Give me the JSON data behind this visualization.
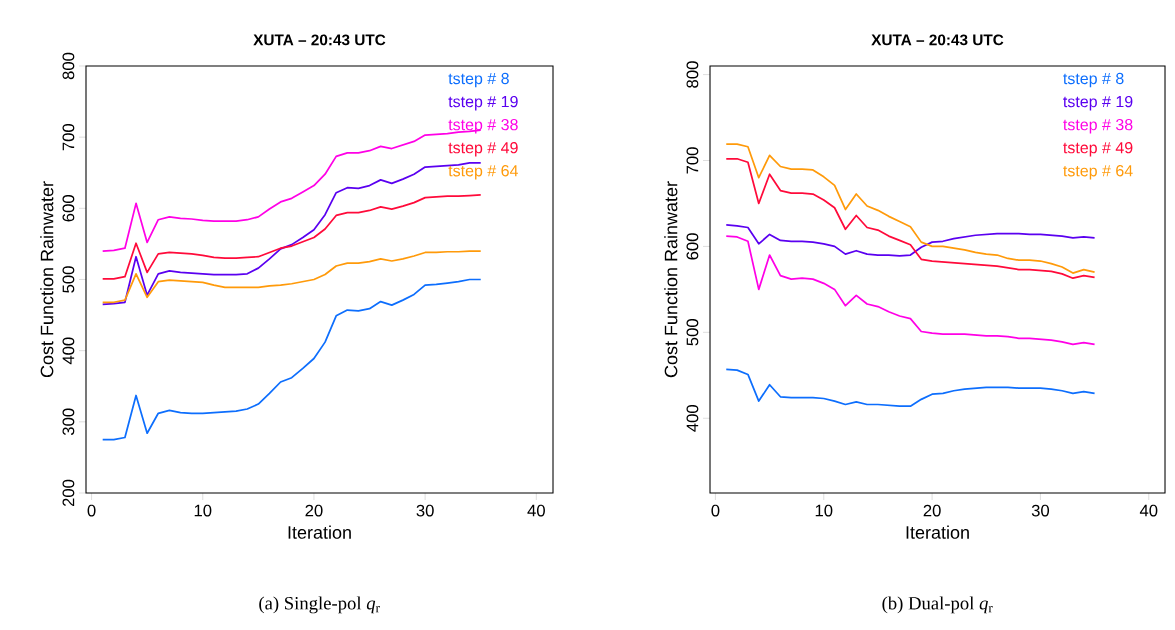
{
  "chart_data": [
    {
      "type": "line",
      "title": "XUTA – 20:43 UTC",
      "xlabel": "Iteration",
      "ylabel": "Cost Function Rainwater",
      "annotations": [
        "(a) Single-pol *q*$_{r}$"
      ],
      "x": [
        1,
        2,
        3,
        4,
        5,
        6,
        7,
        8,
        9,
        10,
        11,
        12,
        13,
        14,
        15,
        16,
        17,
        18,
        19,
        20,
        21,
        22,
        23,
        24,
        25,
        26,
        27,
        28,
        29,
        30,
        31,
        32,
        33,
        34,
        35
      ],
      "xlim": [
        -0.5,
        41.5
      ],
      "ylim": [
        200,
        800
      ],
      "xticks": [
        0,
        10,
        20,
        30,
        40
      ],
      "yticks": [
        200,
        300,
        400,
        500,
        600,
        700,
        800
      ],
      "legend": "top right",
      "marker": "none",
      "series": [
        {
          "name": "tstep # 8",
          "color": "#0d6efd",
          "values": [
            275,
            275,
            278,
            337,
            284,
            312,
            316,
            313,
            312,
            312,
            313,
            314,
            315,
            318,
            325,
            340,
            356,
            362,
            375,
            389,
            412,
            449,
            457,
            456,
            459,
            469,
            464,
            471,
            479,
            492,
            493,
            495,
            497,
            500,
            500
          ]
        },
        {
          "name": "tstep # 19",
          "color": "#5a00f0",
          "values": [
            465,
            466,
            468,
            532,
            478,
            508,
            512,
            510,
            509,
            508,
            507,
            507,
            507,
            508,
            516,
            529,
            543,
            549,
            559,
            570,
            591,
            622,
            629,
            628,
            632,
            640,
            635,
            641,
            648,
            658,
            659,
            660,
            661,
            664,
            664
          ]
        },
        {
          "name": "tstep # 38",
          "color": "#ff00e6",
          "values": [
            540,
            541,
            544,
            607,
            552,
            584,
            588,
            586,
            585,
            583,
            582,
            582,
            582,
            584,
            588,
            599,
            609,
            614,
            623,
            632,
            648,
            673,
            678,
            678,
            681,
            687,
            684,
            689,
            694,
            703,
            704,
            705,
            707,
            708,
            710
          ]
        },
        {
          "name": "tstep # 49",
          "color": "#ff0a3a",
          "values": [
            501,
            501,
            504,
            551,
            510,
            536,
            538,
            537,
            536,
            534,
            531,
            530,
            530,
            531,
            532,
            538,
            544,
            547,
            553,
            559,
            571,
            590,
            594,
            594,
            597,
            602,
            599,
            603,
            608,
            615,
            616,
            617,
            617,
            618,
            619
          ]
        },
        {
          "name": "tstep # 64",
          "color": "#ff9a0a",
          "values": [
            468,
            468,
            471,
            508,
            475,
            497,
            499,
            498,
            497,
            496,
            492,
            489,
            489,
            489,
            489,
            491,
            492,
            494,
            497,
            500,
            507,
            519,
            523,
            523,
            525,
            529,
            526,
            529,
            533,
            538,
            538,
            539,
            539,
            540,
            540
          ]
        }
      ]
    },
    {
      "type": "line",
      "title": "XUTA – 20:43 UTC",
      "xlabel": "Iteration",
      "ylabel": "Cost Function Rainwater",
      "annotations": [
        "(b) Dual-pol *q*$_{r}$"
      ],
      "x": [
        1,
        2,
        3,
        4,
        5,
        6,
        7,
        8,
        9,
        10,
        11,
        12,
        13,
        14,
        15,
        16,
        17,
        18,
        19,
        20,
        21,
        22,
        23,
        24,
        25,
        26,
        27,
        28,
        29,
        30,
        31,
        32,
        33,
        34,
        35
      ],
      "xlim": [
        -0.5,
        41.5
      ],
      "ylim": [
        313,
        810
      ],
      "xticks": [
        0,
        10,
        20,
        30,
        40
      ],
      "yticks": [
        400,
        500,
        600,
        700,
        800
      ],
      "legend": "top right",
      "marker": "none",
      "series": [
        {
          "name": "tstep # 8",
          "color": "#0d6efd",
          "values": [
            457,
            456,
            451,
            420,
            439,
            425,
            424,
            424,
            424,
            423,
            420,
            416,
            419,
            416,
            416,
            415,
            414,
            414,
            422,
            428,
            429,
            432,
            434,
            435,
            436,
            436,
            436,
            435,
            435,
            435,
            434,
            432,
            429,
            431,
            429
          ]
        },
        {
          "name": "tstep # 19",
          "color": "#5a00f0",
          "values": [
            625,
            624,
            622,
            603,
            614,
            607,
            606,
            606,
            605,
            603,
            600,
            591,
            595,
            591,
            590,
            590,
            589,
            590,
            599,
            605,
            606,
            609,
            611,
            613,
            614,
            615,
            615,
            615,
            614,
            614,
            613,
            612,
            610,
            611,
            610
          ]
        },
        {
          "name": "tstep # 38",
          "color": "#ff00e6",
          "values": [
            612,
            611,
            606,
            550,
            590,
            566,
            562,
            563,
            562,
            557,
            550,
            531,
            543,
            533,
            530,
            524,
            519,
            516,
            501,
            499,
            498,
            498,
            498,
            497,
            496,
            496,
            495,
            493,
            493,
            492,
            491,
            489,
            486,
            488,
            486
          ]
        },
        {
          "name": "tstep # 49",
          "color": "#ff0a3a",
          "values": [
            702,
            702,
            698,
            650,
            684,
            665,
            662,
            662,
            661,
            654,
            645,
            620,
            636,
            622,
            619,
            612,
            607,
            602,
            585,
            583,
            582,
            581,
            580,
            579,
            578,
            577,
            575,
            573,
            573,
            572,
            571,
            568,
            563,
            566,
            564
          ]
        },
        {
          "name": "tstep # 64",
          "color": "#ff9a0a",
          "values": [
            719,
            719,
            716,
            680,
            706,
            693,
            690,
            690,
            689,
            681,
            671,
            643,
            661,
            647,
            642,
            635,
            629,
            623,
            605,
            600,
            600,
            598,
            596,
            593,
            591,
            590,
            586,
            584,
            584,
            583,
            580,
            576,
            569,
            573,
            570
          ]
        }
      ]
    }
  ]
}
